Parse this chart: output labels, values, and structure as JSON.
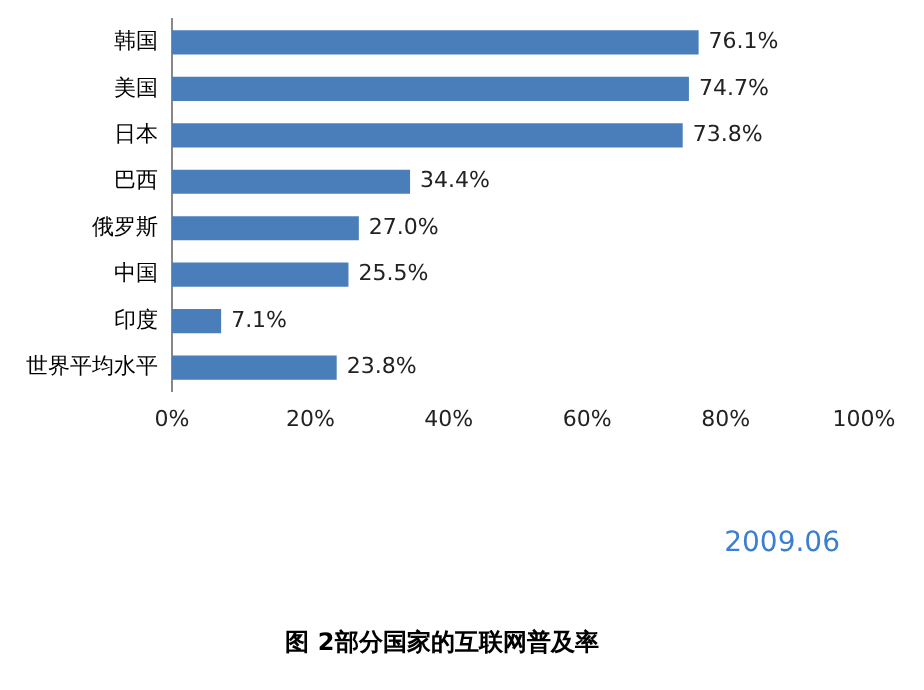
{
  "chart_data": {
    "type": "bar",
    "orientation": "horizontal",
    "title": "图 2部分国家的互联网普及率",
    "categories": [
      "韩国",
      "美国",
      "日本",
      "巴西",
      "俄罗斯",
      "中国",
      "印度",
      "世界平均水平"
    ],
    "values": [
      76.1,
      74.7,
      73.8,
      34.4,
      27.0,
      25.5,
      7.1,
      23.8
    ],
    "value_labels": [
      "76.1%",
      "74.7%",
      "73.8%",
      "34.4%",
      "27.0%",
      "25.5%",
      "7.1%",
      "23.8%"
    ],
    "color": "#4a7ebb",
    "xlim": [
      0,
      100
    ],
    "xticks": [
      {
        "value": 0,
        "label": "0%"
      },
      {
        "value": 20,
        "label": "20%"
      },
      {
        "value": 40,
        "label": "40%"
      },
      {
        "value": 60,
        "label": "60%"
      },
      {
        "value": 80,
        "label": "80%"
      },
      {
        "value": 100,
        "label": "100%"
      }
    ],
    "annotations": [
      "2009.06"
    ],
    "grid": false,
    "legend": false
  }
}
